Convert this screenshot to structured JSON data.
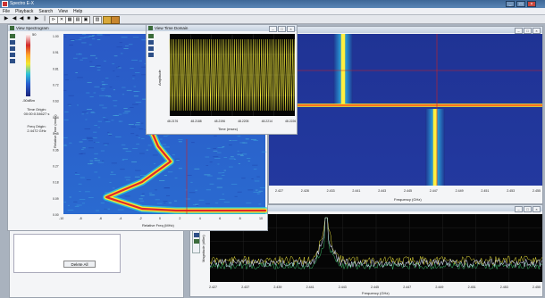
{
  "app": {
    "title": "Spectro E-X"
  },
  "menu": [
    "File",
    "Playback",
    "Search",
    "View",
    "Help"
  ],
  "toolbar": {
    "icons": [
      "play-icon",
      "step-back-icon",
      "stop-icon",
      "pause-icon",
      "fast-forward-icon",
      "skip-icon",
      "marker-icon",
      "zoom-icon",
      "grid-icon",
      "export-icon",
      "settings-icon",
      "folder-icon",
      "save-icon"
    ]
  },
  "spectrogram": {
    "title": "View Spectrogram",
    "colorbar_top": "50",
    "colorbar_bottom": "-50dBm",
    "time_origin_label": "Time Origin:",
    "time_origin_value": "00:00:0.54627 s",
    "freq_origin_label": "Freq Origin:",
    "freq_origin_value": "2.4472 GHz",
    "ylabel": "Relative Time (msec)",
    "xlabel": "Relative Freq (MHz)",
    "yticks": [
      "1.00",
      "0.91",
      "0.81",
      "0.72",
      "0.63",
      "0.54",
      "0.45",
      "0.36",
      "0.27",
      "0.18",
      "0.09",
      "0.00"
    ],
    "xticks": [
      "-10",
      "-8",
      "-6",
      "-4",
      "-2",
      "0",
      "2",
      "4",
      "6",
      "8",
      "10"
    ]
  },
  "time_domain": {
    "title": "View Time Domain",
    "ylabel": "Amplitude",
    "xlabel": "Time (msec)",
    "xticks": [
      "48.2176",
      "48.2188",
      "48.2196",
      "48.2205",
      "48.2214",
      "48.2226"
    ]
  },
  "wide_spectrogram": {
    "xlabel": "Frequency (GHz)",
    "xticks": [
      "2.427",
      "2.428",
      "2.433",
      "2.441",
      "2.443",
      "2.445",
      "2.447",
      "2.449",
      "2.451",
      "2.453",
      "2.455"
    ]
  },
  "spectrum": {
    "ylabel": "Magnitude (dBm)",
    "xlabel": "Frequency (GHz)",
    "xticks": [
      "2.427",
      "2.437",
      "2.439",
      "2.441",
      "2.443",
      "2.445",
      "2.447",
      "2.449",
      "2.451",
      "2.453",
      "2.455"
    ]
  },
  "left_panel": {
    "delete_all": "Delete All"
  }
}
